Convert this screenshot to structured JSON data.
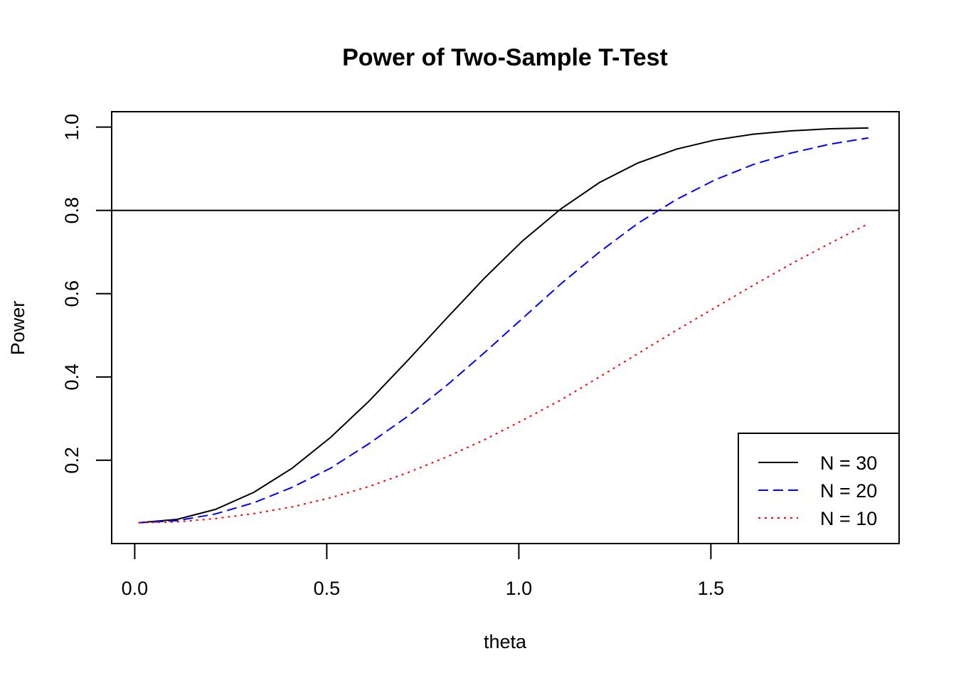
{
  "chart_data": {
    "type": "line",
    "title": "Power of Two-Sample T-Test",
    "xlabel": "theta",
    "ylabel": "Power",
    "xlim": [
      -0.06,
      1.99
    ],
    "ylim": [
      0.0,
      1.037
    ],
    "x_ticks": [
      0.0,
      0.5,
      1.0,
      1.5
    ],
    "x_tick_labels": [
      "0.0",
      "0.5",
      "1.0",
      "1.5"
    ],
    "y_ticks": [
      0.2,
      0.4,
      0.6,
      0.8,
      1.0
    ],
    "y_tick_labels": [
      "0.2",
      "0.4",
      "0.6",
      "0.8",
      "1.0"
    ],
    "grid": false,
    "reference_line": {
      "y": 0.8,
      "color": "#000000"
    },
    "legend": {
      "placement": "bottom-right"
    },
    "x": [
      0.01,
      0.11,
      0.21,
      0.31,
      0.41,
      0.51,
      0.61,
      0.71,
      0.81,
      0.91,
      1.01,
      1.11,
      1.21,
      1.31,
      1.41,
      1.51,
      1.61,
      1.71,
      1.81,
      1.91
    ],
    "series": [
      {
        "name": "N = 30",
        "color": "#000000",
        "line_style": "solid",
        "values": [
          0.05,
          0.058,
          0.082,
          0.123,
          0.181,
          0.255,
          0.342,
          0.439,
          0.539,
          0.637,
          0.727,
          0.804,
          0.867,
          0.914,
          0.947,
          0.969,
          0.983,
          0.991,
          0.996,
          0.998
        ]
      },
      {
        "name": "N = 20",
        "color": "#0000ff",
        "line_style": "dashed",
        "values": [
          0.05,
          0.055,
          0.071,
          0.098,
          0.135,
          0.181,
          0.24,
          0.305,
          0.378,
          0.458,
          0.541,
          0.624,
          0.7,
          0.769,
          0.826,
          0.873,
          0.91,
          0.938,
          0.959,
          0.974
        ]
      },
      {
        "name": "N = 10",
        "color": "#ff0000",
        "line_style": "dotted",
        "values": [
          0.05,
          0.052,
          0.06,
          0.072,
          0.088,
          0.11,
          0.137,
          0.17,
          0.207,
          0.249,
          0.296,
          0.345,
          0.4,
          0.456,
          0.512,
          0.566,
          0.62,
          0.672,
          0.721,
          0.768
        ]
      }
    ]
  }
}
